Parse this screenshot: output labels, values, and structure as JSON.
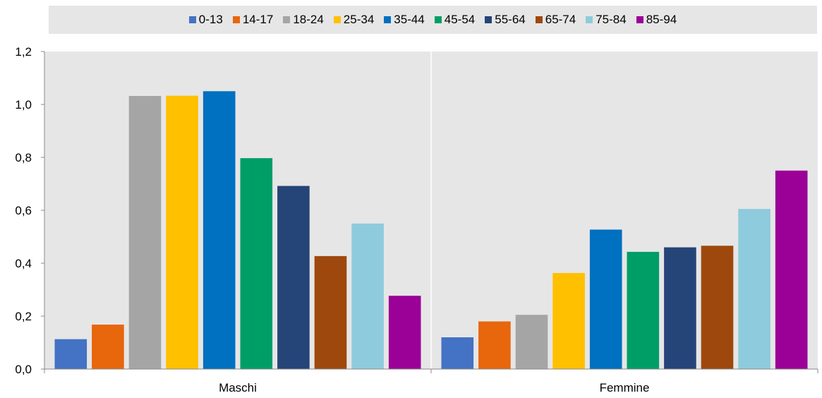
{
  "chart_data": {
    "type": "bar",
    "categories": [
      "Maschi",
      "Femmine"
    ],
    "series": [
      {
        "name": "0-13",
        "color": "#4472c4",
        "values": [
          0.113,
          0.12
        ]
      },
      {
        "name": "14-17",
        "color": "#e8660c",
        "values": [
          0.168,
          0.18
        ]
      },
      {
        "name": "18-24",
        "color": "#a5a5a5",
        "values": [
          1.032,
          0.205
        ]
      },
      {
        "name": "25-34",
        "color": "#ffc000",
        "values": [
          1.033,
          0.363
        ]
      },
      {
        "name": "35-44",
        "color": "#0070c0",
        "values": [
          1.05,
          0.527
        ]
      },
      {
        "name": "45-54",
        "color": "#009e67",
        "values": [
          0.797,
          0.443
        ]
      },
      {
        "name": "55-64",
        "color": "#254478",
        "values": [
          0.692,
          0.46
        ]
      },
      {
        "name": "65-74",
        "color": "#9e480e",
        "values": [
          0.427,
          0.466
        ]
      },
      {
        "name": "75-84",
        "color": "#8ecbdc",
        "values": [
          0.55,
          0.605
        ]
      },
      {
        "name": "85-94",
        "color": "#9b0097",
        "values": [
          0.277,
          0.75
        ]
      }
    ],
    "yticks": [
      "0,0",
      "0,2",
      "0,4",
      "0,6",
      "0,8",
      "1,0",
      "1,2"
    ],
    "ylim": [
      0,
      1.2
    ],
    "grid": false,
    "legend_position": "top",
    "plot_background": "#e6e6e6"
  }
}
